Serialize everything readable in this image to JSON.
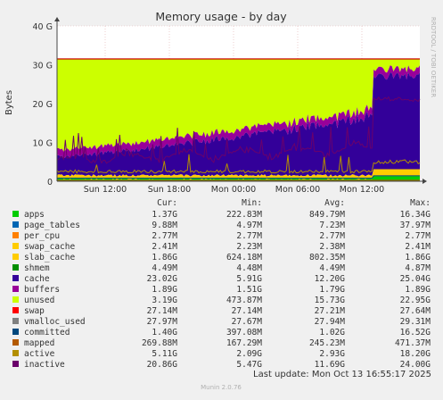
{
  "chart_data": {
    "type": "area",
    "title": "Memory usage - by day",
    "ylabel": "Bytes",
    "xlabel": "",
    "y_unit": "bytes",
    "ylim": [
      0,
      40000000000
    ],
    "y_ticks": [
      {
        "value": 0,
        "label": "0"
      },
      {
        "value": 10000000000,
        "label": "10 G"
      },
      {
        "value": 20000000000,
        "label": "20 G"
      },
      {
        "value": 30000000000,
        "label": "30 G"
      },
      {
        "value": 40000000000,
        "label": "40 G"
      }
    ],
    "x_ticks": [
      "Sun 12:00",
      "Sun 18:00",
      "Mon 00:00",
      "Mon 06:00",
      "Mon 12:00"
    ],
    "side_label": "RRDTOOL / TOBI OETIKER",
    "grid": true,
    "legend_position": "bottom",
    "columns": [
      "Cur:",
      "Min:",
      "Avg:",
      "Max:"
    ],
    "series": [
      {
        "name": "apps",
        "color": "#00cc00",
        "cur": "1.37G",
        "min": "222.83M",
        "avg": "849.79M",
        "max": "16.34G"
      },
      {
        "name": "page_tables",
        "color": "#0066b3",
        "cur": "9.88M",
        "min": "4.97M",
        "avg": "7.23M",
        "max": "37.97M"
      },
      {
        "name": "per_cpu",
        "color": "#ff8000",
        "cur": "2.77M",
        "min": "2.77M",
        "avg": "2.77M",
        "max": "2.77M"
      },
      {
        "name": "swap_cache",
        "color": "#ffcc00",
        "cur": "2.41M",
        "min": "2.23M",
        "avg": "2.38M",
        "max": "2.41M"
      },
      {
        "name": "slab_cache",
        "color": "#ffcc00",
        "cur": "1.86G",
        "min": "624.18M",
        "avg": "802.35M",
        "max": "1.86G"
      },
      {
        "name": "shmem",
        "color": "#008f00",
        "cur": "4.49M",
        "min": "4.48M",
        "avg": "4.49M",
        "max": "4.87M"
      },
      {
        "name": "cache",
        "color": "#330099",
        "cur": "23.02G",
        "min": "5.91G",
        "avg": "12.20G",
        "max": "25.04G"
      },
      {
        "name": "buffers",
        "color": "#990099",
        "cur": "1.89G",
        "min": "1.51G",
        "avg": "1.79G",
        "max": "1.89G"
      },
      {
        "name": "unused",
        "color": "#ccff00",
        "cur": "3.19G",
        "min": "473.87M",
        "avg": "15.73G",
        "max": "22.95G"
      },
      {
        "name": "swap",
        "color": "#ff0000",
        "cur": "27.14M",
        "min": "27.14M",
        "avg": "27.21M",
        "max": "27.64M"
      },
      {
        "name": "vmalloc_used",
        "color": "#808080",
        "cur": "27.97M",
        "min": "27.67M",
        "avg": "27.94M",
        "max": "29.31M"
      },
      {
        "name": "committed",
        "color": "#00487d",
        "cur": "1.40G",
        "min": "397.08M",
        "avg": "1.02G",
        "max": "16.52G"
      },
      {
        "name": "mapped",
        "color": "#b35a00",
        "cur": "269.88M",
        "min": "167.29M",
        "avg": "245.23M",
        "max": "471.37M"
      },
      {
        "name": "active",
        "color": "#b38f00",
        "cur": "5.11G",
        "min": "2.09G",
        "avg": "2.93G",
        "max": "18.20G"
      },
      {
        "name": "inactive",
        "color": "#6b006b",
        "cur": "20.86G",
        "min": "5.47G",
        "avg": "11.69G",
        "max": "24.00G"
      }
    ],
    "last_update": "Last update: Mon Oct 13 16:55:17 2025",
    "footer": "Munin 2.0.76"
  }
}
